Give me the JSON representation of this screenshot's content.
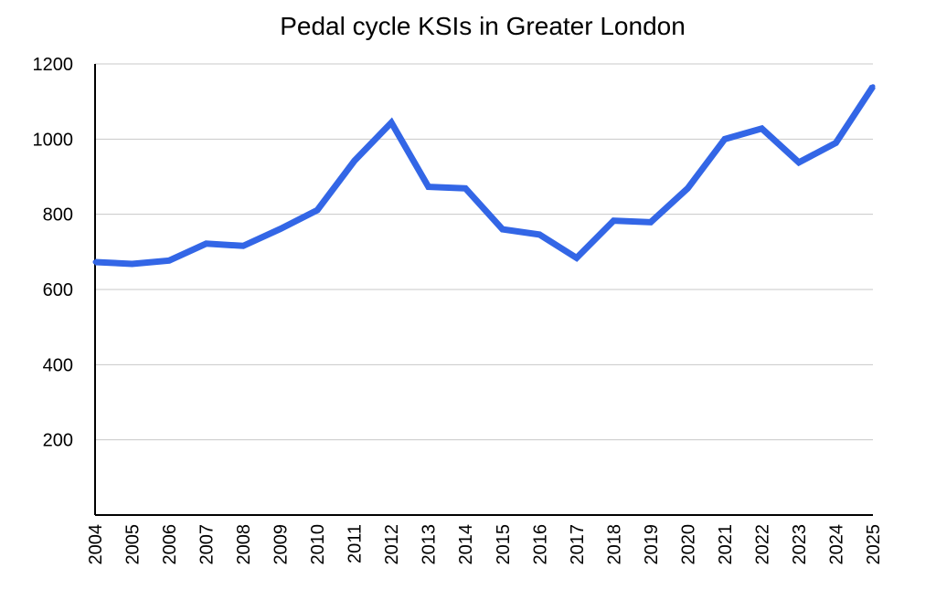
{
  "chart_data": {
    "type": "line",
    "title": "Pedal cycle KSIs in Greater London",
    "xlabel": "",
    "ylabel": "",
    "ylim": [
      0,
      1200
    ],
    "yticks": [
      200,
      400,
      600,
      800,
      1000,
      1200
    ],
    "grid": true,
    "categories": [
      "2004",
      "2005",
      "2006",
      "2007",
      "2008",
      "2009",
      "2010",
      "2011",
      "2012",
      "2013",
      "2014",
      "2015",
      "2016",
      "2017",
      "2018",
      "2019",
      "2020",
      "2021",
      "2022",
      "2023",
      "2024",
      "2025"
    ],
    "series": [
      {
        "name": "Pedal cycle KSIs",
        "color": "#3366e6",
        "values": [
          673,
          668,
          677,
          722,
          716,
          761,
          811,
          942,
          1044,
          873,
          869,
          760,
          746,
          684,
          783,
          779,
          869,
          1000,
          1028,
          938,
          990,
          1140
        ]
      }
    ]
  }
}
